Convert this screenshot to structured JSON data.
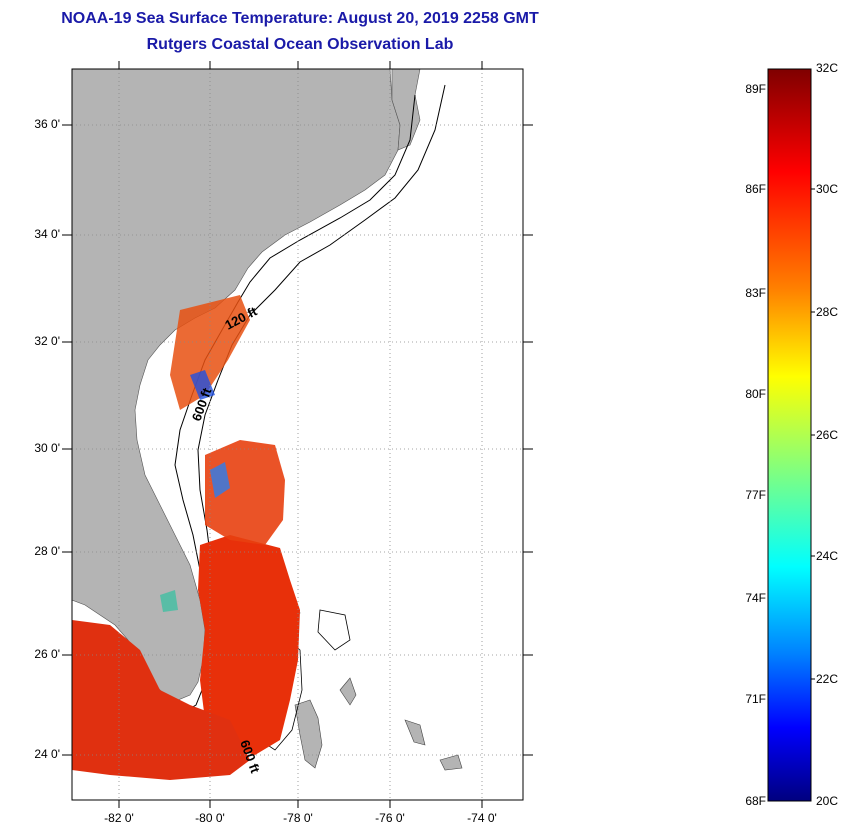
{
  "title": {
    "line1": "NOAA-19 Sea Surface Temperature:  August 20, 2019 2258 GMT",
    "line2": "Rutgers Coastal Ocean Observation Lab"
  },
  "map": {
    "lat_labels": [
      "36 0'",
      "34 0'",
      "32 0'",
      "30 0'",
      "28 0'",
      "26 0'",
      "24 0'"
    ],
    "lon_labels": [
      "-82 0'",
      "-80 0'",
      "-78 0'",
      "-76 0'",
      "-74 0'"
    ],
    "contour_labels": [
      "120 ft",
      "600 ft",
      "600 ft"
    ],
    "colors": {
      "land": "#b4b4b4",
      "ocean": "#ffffff",
      "grid": "#888888"
    }
  },
  "colorbar": {
    "fahrenheit": [
      "89F",
      "86F",
      "83F",
      "80F",
      "77F",
      "74F",
      "71F",
      "68F"
    ],
    "celsius": [
      "32C",
      "30C",
      "28C",
      "26C",
      "24C",
      "22C",
      "20C"
    ],
    "gradient": [
      "#7f0000",
      "#ff0000",
      "#ff8000",
      "#ffff00",
      "#80ff80",
      "#00ffff",
      "#0080ff",
      "#0000ff",
      "#00007f"
    ]
  }
}
